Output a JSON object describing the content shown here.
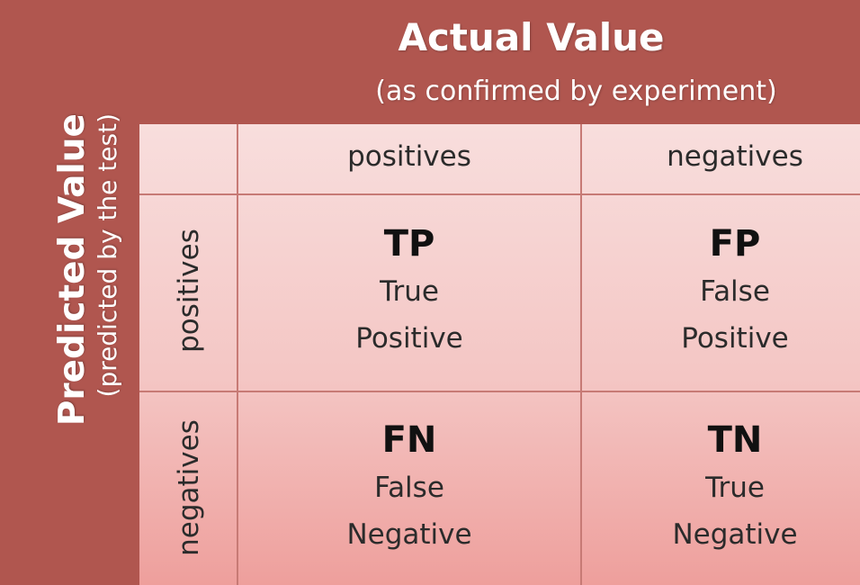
{
  "actual": {
    "title": "Actual Value",
    "subtitle": "(as confirmed by experiment)"
  },
  "predicted": {
    "title": "Predicted Value",
    "subtitle": "(predicted by the test)"
  },
  "columns": [
    "positives",
    "negatives"
  ],
  "rows": [
    "positives",
    "negatives"
  ],
  "cells": {
    "tp": {
      "abbr": "TP",
      "line1": "True",
      "line2": "Positive"
    },
    "fp": {
      "abbr": "FP",
      "line1": "False",
      "line2": "Positive"
    },
    "fn": {
      "abbr": "FN",
      "line1": "False",
      "line2": "Negative"
    },
    "tn": {
      "abbr": "TN",
      "line1": "True",
      "line2": "Negative"
    }
  },
  "colors": {
    "frame": "#b0564f",
    "grid_top": "#f8dedd",
    "grid_bottom": "#ee9f9c",
    "grid_lines": "#c77a75",
    "text": "#2b2b2b",
    "heading_text": "#ffffff"
  }
}
